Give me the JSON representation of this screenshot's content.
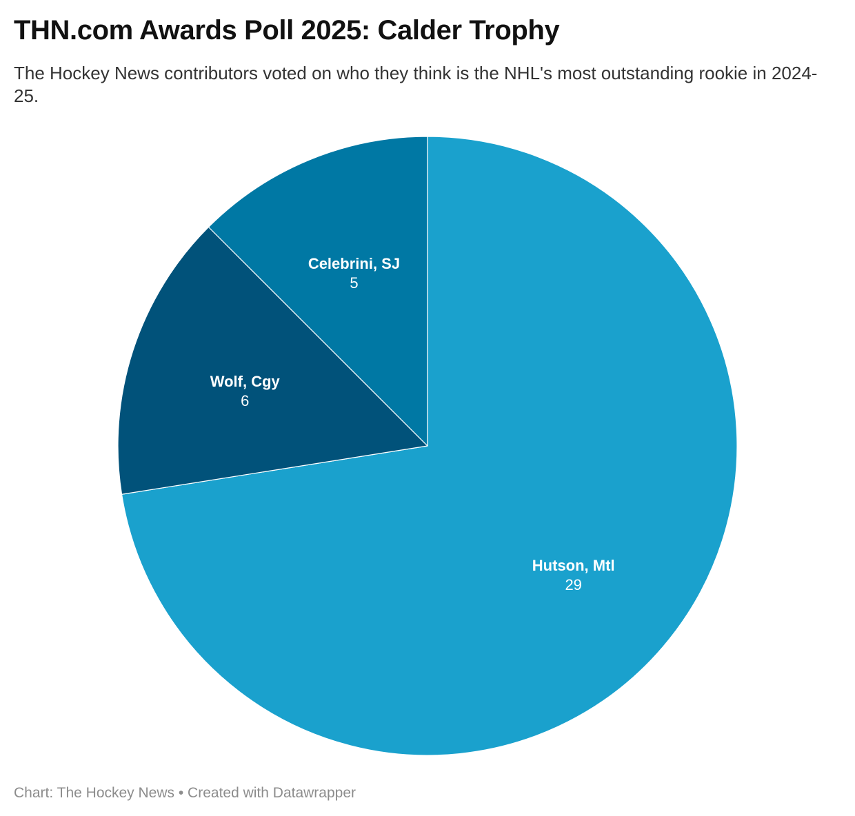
{
  "title": "THN.com Awards Poll 2025: Calder Trophy",
  "subtitle": "The Hockey News contributors voted on who they think is the NHL's most outstanding rookie in 2024-25.",
  "footer": "Chart: The Hockey News • Created with Datawrapper",
  "chart_data": {
    "type": "pie",
    "title": "THN.com Awards Poll 2025: Calder Trophy",
    "subtitle": "The Hockey News contributors voted on who they think is the NHL's most outstanding rookie in 2024-25.",
    "start_angle": "12 o'clock",
    "direction": "clockwise",
    "slices": [
      {
        "label": "Hutson, Mtl",
        "value": 29,
        "color": "#1aa1cd"
      },
      {
        "label": "Wolf, Cgy",
        "value": 6,
        "color": "#01527a"
      },
      {
        "label": "Celebrini, SJ",
        "value": 5,
        "color": "#0078a4"
      }
    ]
  }
}
